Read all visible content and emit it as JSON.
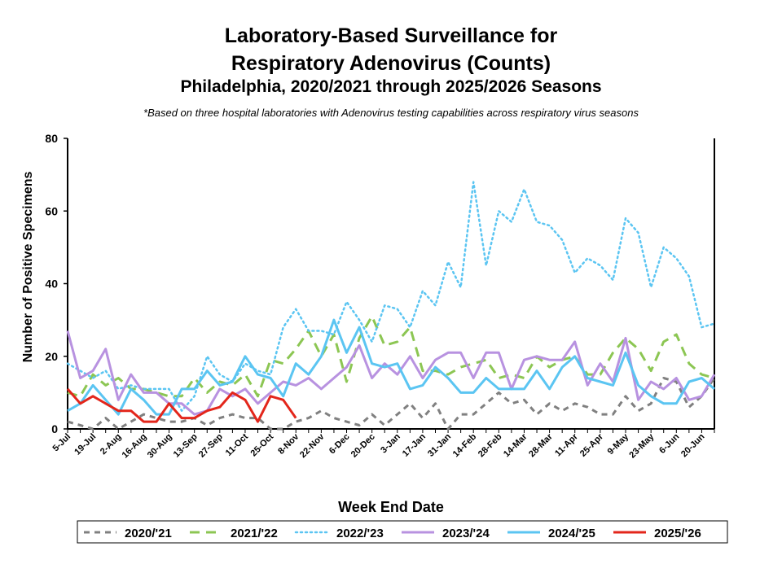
{
  "chart_data": {
    "type": "line",
    "title": "Laboratory-Based Surveillance for",
    "title2": "Respiratory Adenovirus (Counts)",
    "subtitle": "Philadelphia, 2020/2021 through 2025/2026 Seasons",
    "note": "*Based on three hospital laboratories with Adenovirus testing capabilities across respiratory virus seasons",
    "xlabel": "Week End Date",
    "ylabel": "Number of Positive Specimens",
    "ylim": [
      0,
      80
    ],
    "yticks": [
      0,
      20,
      40,
      60,
      80
    ],
    "xtick_labels": [
      "5-Jul",
      "19-Jul",
      "2-Aug",
      "16-Aug",
      "30-Aug",
      "13-Sep",
      "27-Sep",
      "11-Oct",
      "25-Oct",
      "8-Nov",
      "22-Nov",
      "6-Dec",
      "20-Dec",
      "3-Jan",
      "17-Jan",
      "31-Jan",
      "14-Feb",
      "28-Feb",
      "14-Mar",
      "28-Mar",
      "11-Apr",
      "25-Apr",
      "9-May",
      "23-May",
      "6-Jun",
      "20-Jun"
    ],
    "n_weeks": 52,
    "legend_placement": "bottom",
    "series": [
      {
        "name": "2020/'21",
        "color": "#808080",
        "style": "dashed",
        "values": [
          2,
          1,
          0,
          3,
          0,
          2,
          4,
          3,
          2,
          2,
          3,
          1,
          3,
          4,
          3,
          3,
          0,
          0,
          2,
          3,
          5,
          3,
          2,
          1,
          4,
          1,
          4,
          7,
          3,
          7,
          0,
          4,
          4,
          7,
          10,
          7,
          8,
          4,
          7,
          5,
          7,
          6,
          4,
          4,
          9,
          5,
          7,
          14,
          13,
          6,
          9,
          14
        ]
      },
      {
        "name": "2021/'22",
        "color": "#8cc653",
        "style": "longdash",
        "values": [
          10,
          9,
          15,
          12,
          14,
          11,
          11,
          10,
          9,
          9,
          14,
          10,
          13,
          12,
          15,
          9,
          19,
          18,
          22,
          27,
          20,
          26,
          13,
          25,
          31,
          23,
          24,
          28,
          16,
          16,
          15,
          17,
          18,
          19,
          14,
          15,
          14,
          20,
          17,
          19,
          20,
          15,
          15,
          21,
          25,
          22,
          16,
          24,
          26,
          18,
          15,
          14
        ]
      },
      {
        "name": "2022/'23",
        "color": "#5bc5f2",
        "style": "dotted",
        "values": [
          18,
          16,
          14,
          16,
          11,
          12,
          11,
          11,
          11,
          5,
          9,
          20,
          15,
          13,
          18,
          16,
          15,
          28,
          33,
          27,
          27,
          26,
          35,
          30,
          24,
          34,
          33,
          28,
          38,
          34,
          46,
          39,
          68,
          45,
          60,
          57,
          66,
          57,
          56,
          52,
          43,
          47,
          45,
          41,
          58,
          54,
          39,
          50,
          47,
          42,
          28,
          29
        ]
      },
      {
        "name": "2023/'24",
        "color": "#b892e0",
        "style": "solid",
        "values": [
          27,
          14,
          16,
          22,
          8,
          15,
          10,
          10,
          7,
          7,
          4,
          5,
          11,
          9,
          11,
          7,
          10,
          13,
          12,
          14,
          11,
          14,
          17,
          23,
          14,
          18,
          15,
          20,
          14,
          19,
          21,
          21,
          14,
          21,
          21,
          11,
          19,
          20,
          19,
          19,
          24,
          12,
          18,
          13,
          25,
          8,
          13,
          11,
          14,
          8,
          9,
          15
        ]
      },
      {
        "name": "2024/'25",
        "color": "#5bc5f2",
        "style": "solid",
        "values": [
          5,
          7,
          12,
          8,
          4,
          11,
          8,
          4,
          4,
          11,
          11,
          16,
          12,
          13,
          20,
          15,
          14,
          9,
          18,
          15,
          20,
          30,
          21,
          28,
          18,
          17,
          18,
          11,
          12,
          17,
          14,
          10,
          10,
          14,
          11,
          11,
          11,
          16,
          11,
          17,
          20,
          14,
          13,
          12,
          21,
          12,
          9,
          7,
          7,
          13,
          14,
          11
        ]
      },
      {
        "name": "2025/'26",
        "color": "#e3261b",
        "style": "solid",
        "values": [
          11,
          7,
          9,
          7,
          5,
          5,
          2,
          2,
          7,
          3,
          3,
          5,
          6,
          10,
          8,
          2,
          9,
          8,
          3
        ]
      }
    ]
  }
}
